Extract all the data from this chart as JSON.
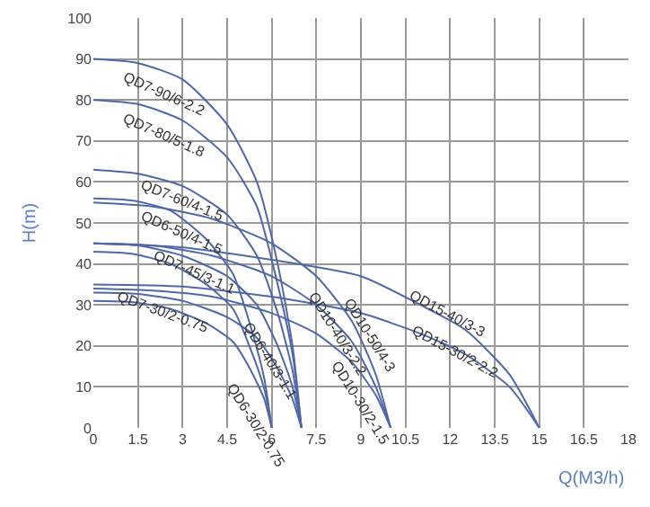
{
  "chart_data": {
    "type": "line",
    "xlabel": "Q(M3/h)",
    "ylabel": "H(m)",
    "xlim": [
      0,
      18
    ],
    "xticks": [
      0,
      1.5,
      3,
      4.5,
      6,
      7.5,
      9,
      10.5,
      12,
      13.5,
      15,
      16.5,
      18
    ],
    "ylim": [
      0,
      100
    ],
    "yticks": [
      0,
      10,
      20,
      30,
      40,
      50,
      60,
      70,
      80,
      90,
      100
    ],
    "grid": true,
    "marker": "none",
    "line_style": "solid",
    "series": [
      {
        "name": "QD7-90/6-2.2",
        "color": "#5068a8",
        "x": [
          0,
          1.5,
          3,
          4.5,
          5.5,
          6.2,
          6.7,
          7
        ],
        "values": [
          90,
          89,
          85,
          74,
          60,
          40,
          20,
          0
        ]
      },
      {
        "name": "QD7-80/5-1.8",
        "color": "#5068a8",
        "x": [
          0,
          1.5,
          3,
          4.5,
          5.5,
          6.2,
          6.7,
          7
        ],
        "values": [
          80,
          79,
          75,
          66,
          54,
          35,
          18,
          0
        ]
      },
      {
        "name": "QD7-60/4-1.5",
        "color": "#5068a8",
        "x": [
          0,
          1.5,
          3,
          4.5,
          5.5,
          6.2,
          6.7,
          7
        ],
        "values": [
          63,
          62,
          59,
          52,
          42,
          28,
          14,
          0
        ]
      },
      {
        "name": "QD6-50/4-1.5",
        "color": "#5068a8",
        "x": [
          0,
          1.3,
          2.6,
          3.8,
          4.7,
          5.3,
          5.75,
          6
        ],
        "values": [
          56,
          55.5,
          53,
          46,
          37.5,
          24.5,
          12,
          0
        ]
      },
      {
        "name": "QD7-45/3-1.1",
        "color": "#5068a8",
        "x": [
          0,
          1.5,
          3,
          4.5,
          5.5,
          6.2,
          6.7,
          7
        ],
        "values": [
          45,
          44.5,
          42,
          37,
          30,
          20,
          10,
          0
        ]
      },
      {
        "name": "QD7-30/2-0.75",
        "color": "#5068a8",
        "x": [
          0,
          1.5,
          3,
          4.5,
          5.5,
          6.2,
          6.7,
          7
        ],
        "values": [
          33,
          32.7,
          31,
          27,
          22,
          14.5,
          7,
          0
        ]
      },
      {
        "name": "QD6-40/3-1.1",
        "color": "#5068a8",
        "x": [
          0,
          1.3,
          2.6,
          3.8,
          4.7,
          5.3,
          5.75,
          6
        ],
        "values": [
          43,
          42.5,
          40,
          35,
          29,
          19,
          9.5,
          0
        ]
      },
      {
        "name": "QD6-30/2-0.75",
        "color": "#5068a8",
        "x": [
          0,
          1.3,
          2.6,
          3.8,
          4.7,
          5.3,
          5.75,
          6
        ],
        "values": [
          31,
          30.7,
          29,
          25.5,
          21,
          14,
          7,
          0
        ]
      },
      {
        "name": "QD10-50/4-3",
        "color": "#5068a8",
        "x": [
          0,
          2,
          4,
          6,
          7.5,
          8.7,
          9.5,
          10
        ],
        "values": [
          55,
          54,
          51,
          45,
          37,
          26,
          13,
          0
        ]
      },
      {
        "name": "QD10-40/3-2.2",
        "color": "#5068a8",
        "x": [
          0,
          2,
          4,
          6,
          7.5,
          8.7,
          9.5,
          10
        ],
        "values": [
          45,
          44.5,
          42,
          37,
          30,
          21,
          10,
          0
        ]
      },
      {
        "name": "QD10-30/2-1.5",
        "color": "#5068a8",
        "x": [
          0,
          2,
          4,
          6,
          7.5,
          8.7,
          9.5,
          10
        ],
        "values": [
          34,
          33.5,
          32,
          28,
          23,
          16,
          8,
          0
        ]
      },
      {
        "name": "QD15-40/3-3",
        "color": "#5068a8",
        "x": [
          0,
          3,
          6,
          9,
          11,
          12.5,
          14,
          15
        ],
        "values": [
          45,
          44,
          41,
          37,
          30,
          24,
          13,
          0
        ]
      },
      {
        "name": "QD15-30/2-2.2",
        "color": "#5068a8",
        "x": [
          0,
          3,
          6,
          9,
          11,
          12.5,
          14,
          15
        ],
        "values": [
          35,
          34.5,
          32,
          28,
          23,
          18,
          10,
          0
        ]
      }
    ]
  }
}
